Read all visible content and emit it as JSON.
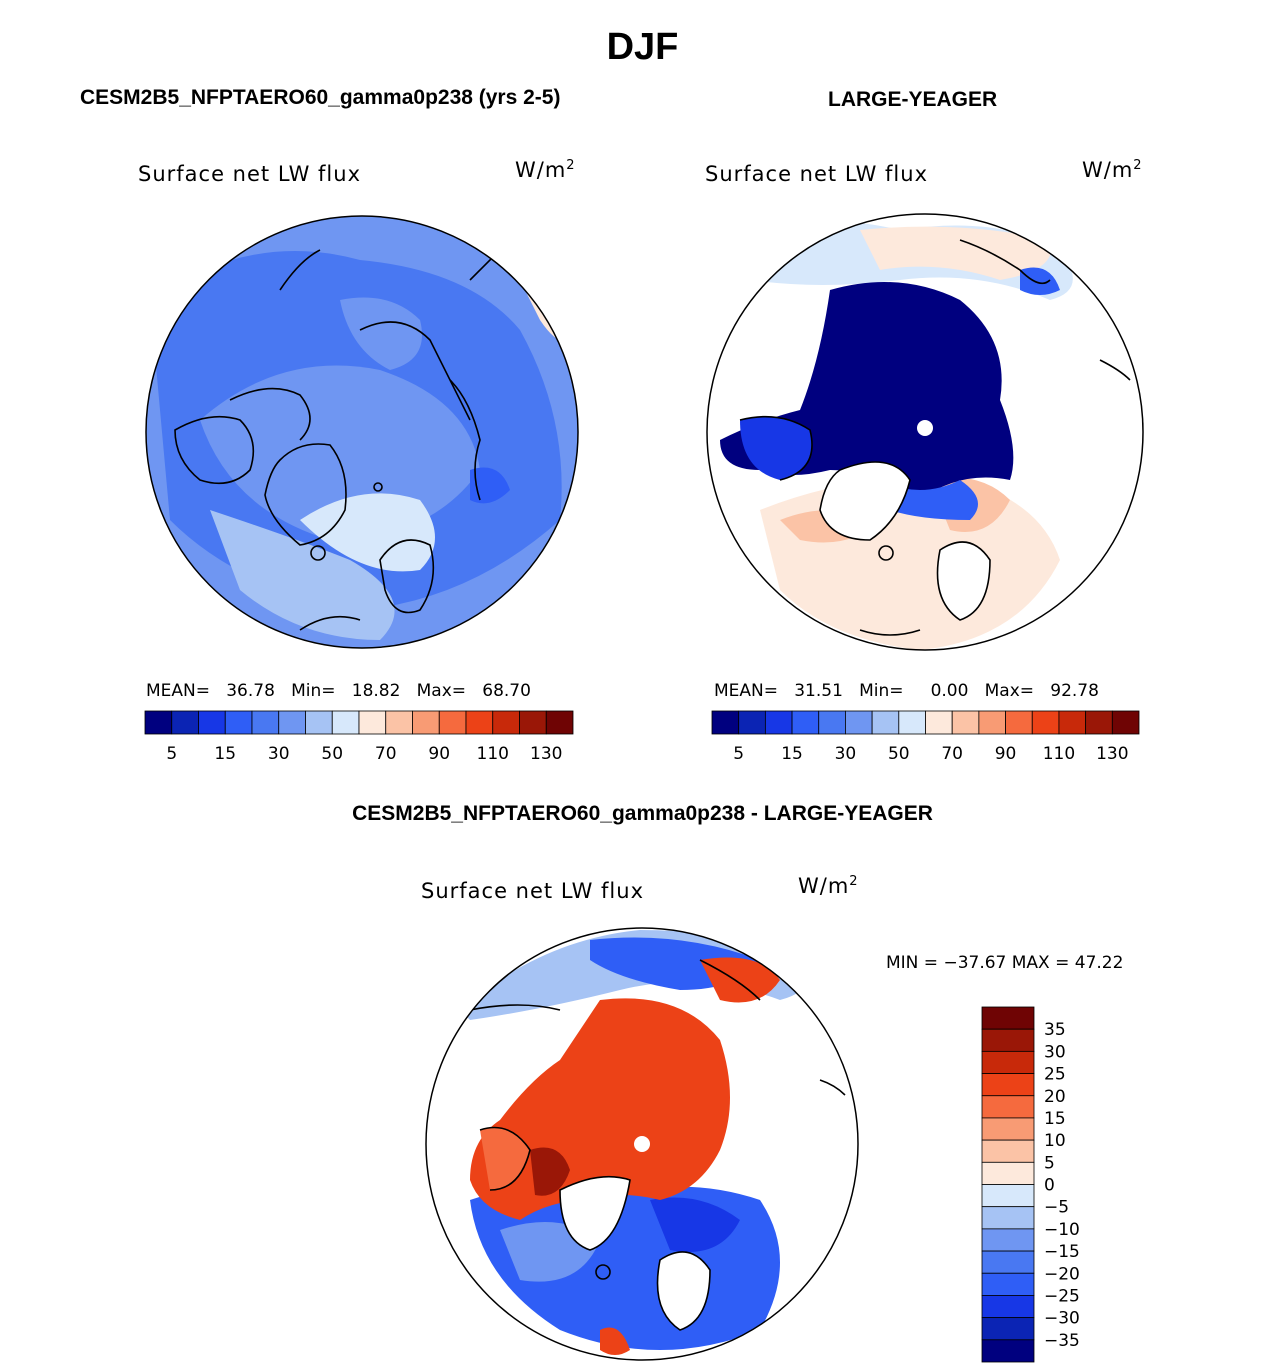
{
  "figure": {
    "title": "DJF",
    "diff_title": "CESM2B5_NFPTAERO60_gamma0p238 - LARGE-YEAGER"
  },
  "colors": {
    "abs_scale": [
      "#00007f",
      "#0b24b4",
      "#1737e6",
      "#2f5ef6",
      "#4978f2",
      "#6f96f2",
      "#a6c3f4",
      "#d7e8fb",
      "#fde9dc",
      "#fbc3a6",
      "#f89b74",
      "#f56a3e",
      "#ec4217",
      "#c8290a",
      "#9a1707",
      "#6f0404"
    ],
    "diff_scale": [
      "#00007f",
      "#0b24b4",
      "#1737e6",
      "#2f5ef6",
      "#4978f2",
      "#6f96f2",
      "#a6c3f4",
      "#d7e8fb",
      "#fde9dc",
      "#fbc3a6",
      "#f89b74",
      "#f56a3e",
      "#ec4217",
      "#c8290a",
      "#9a1707",
      "#6f0404"
    ]
  },
  "panels": [
    {
      "title": "CESM2B5_NFPTAERO60_gamma0p238 (yrs 2-5)",
      "variable": "Surface net LW flux",
      "units_base": "W/m",
      "units_exp": "2",
      "stats": {
        "mean_label": "MEAN=",
        "mean": "36.78",
        "min_label": "Min=",
        "min": "18.82",
        "max_label": "Max=",
        "max": "68.70"
      },
      "colorbar_ticks": [
        "5",
        "15",
        "30",
        "50",
        "70",
        "90",
        "110",
        "130"
      ]
    },
    {
      "title": "LARGE-YEAGER",
      "variable": "Surface net LW flux",
      "units_base": "W/m",
      "units_exp": "2",
      "stats": {
        "mean_label": "MEAN=",
        "mean": "31.51",
        "min_label": "Min=",
        "min": "0.00",
        "max_label": "Max=",
        "max": "92.78"
      },
      "colorbar_ticks": [
        "5",
        "15",
        "30",
        "50",
        "70",
        "90",
        "110",
        "130"
      ]
    },
    {
      "title": "",
      "variable": "Surface net LW flux",
      "units_base": "W/m",
      "units_exp": "2",
      "range_text": "MIN = −37.67 MAX =  47.22",
      "colorbar_ticks": [
        "35",
        "30",
        "25",
        "20",
        "15",
        "10",
        "5",
        "0",
        "−5",
        "−10",
        "−15",
        "−20",
        "−25",
        "−30",
        "−35"
      ]
    }
  ],
  "chart_data": [
    {
      "type": "heatmap",
      "projection": "north polar stereographic",
      "title": "CESM2B5_NFPTAERO60_gamma0p238 (yrs 2-5)",
      "variable": "Surface net LW flux",
      "units": "W/m2",
      "mean": 36.78,
      "min": 18.82,
      "max": 68.7,
      "levels": [
        5,
        10,
        15,
        20,
        30,
        40,
        50,
        60,
        70,
        80,
        90,
        100,
        110,
        120,
        130
      ]
    },
    {
      "type": "heatmap",
      "projection": "north polar stereographic",
      "title": "LARGE-YEAGER",
      "variable": "Surface net LW flux",
      "units": "W/m2",
      "mean": 31.51,
      "min": 0.0,
      "max": 92.78,
      "levels": [
        5,
        10,
        15,
        20,
        30,
        40,
        50,
        60,
        70,
        80,
        90,
        100,
        110,
        120,
        130
      ]
    },
    {
      "type": "heatmap",
      "projection": "north polar stereographic",
      "title": "CESM2B5_NFPTAERO60_gamma0p238 - LARGE-YEAGER",
      "variable": "Surface net LW flux",
      "units": "W/m2",
      "min": -37.67,
      "max": 47.22,
      "levels": [
        -35,
        -30,
        -25,
        -20,
        -15,
        -10,
        -5,
        0,
        5,
        10,
        15,
        20,
        25,
        30,
        35
      ]
    }
  ]
}
